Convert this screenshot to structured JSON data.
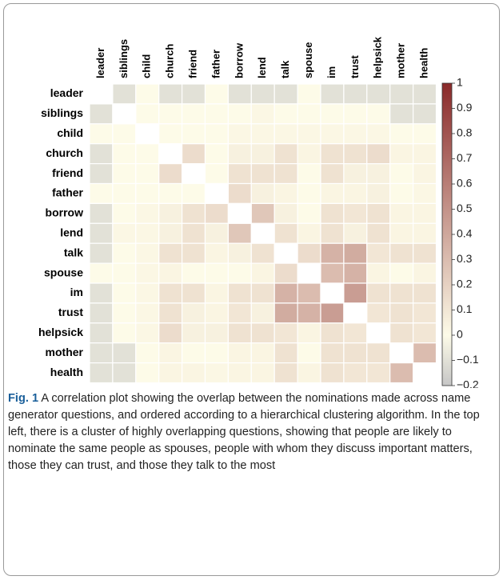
{
  "chart_data": {
    "type": "heatmap",
    "categories": [
      "leader",
      "siblings",
      "child",
      "church",
      "friend",
      "father",
      "borrow",
      "lend",
      "talk",
      "spouse",
      "im",
      "trust",
      "helpsick",
      "mother",
      "health"
    ],
    "values": [
      [
        null,
        -0.1,
        0,
        -0.1,
        -0.1,
        0,
        -0.1,
        -0.1,
        -0.1,
        0,
        -0.1,
        -0.1,
        -0.1,
        -0.1,
        -0.1
      ],
      [
        -0.1,
        null,
        0,
        0,
        0,
        0,
        0,
        0.02,
        0,
        0,
        0,
        0,
        0,
        -0.1,
        -0.1
      ],
      [
        0,
        0,
        null,
        0,
        0,
        0,
        0.02,
        0.02,
        0.02,
        0.02,
        0.02,
        0.02,
        0.02,
        0,
        0
      ],
      [
        -0.1,
        0,
        0,
        null,
        0.15,
        0,
        0.05,
        0.05,
        0.12,
        0.03,
        0.12,
        0.12,
        0.15,
        0.03,
        0.03
      ],
      [
        -0.1,
        0,
        0,
        0.15,
        null,
        0,
        0.12,
        0.12,
        0.12,
        0,
        0.12,
        0.05,
        0.05,
        0,
        0.03
      ],
      [
        0,
        0,
        0,
        0,
        0,
        null,
        0.15,
        0.05,
        0.03,
        0,
        0.03,
        0.03,
        0.05,
        0,
        0.02
      ],
      [
        -0.1,
        0,
        0.02,
        0.05,
        0.12,
        0.15,
        null,
        0.25,
        0.05,
        0,
        0.12,
        0.1,
        0.12,
        0.03,
        0.03
      ],
      [
        -0.1,
        0.02,
        0.02,
        0.05,
        0.12,
        0.05,
        0.25,
        null,
        0.12,
        0.03,
        0.12,
        0.05,
        0.12,
        0.03,
        0.03
      ],
      [
        -0.1,
        0,
        0.02,
        0.12,
        0.12,
        0.03,
        0.05,
        0.12,
        null,
        0.15,
        0.35,
        0.38,
        0.1,
        0.12,
        0.12
      ],
      [
        0,
        0,
        0.02,
        0.03,
        0,
        0,
        0,
        0.03,
        0.15,
        null,
        0.3,
        0.35,
        0.03,
        0,
        0.03
      ],
      [
        -0.1,
        0,
        0.02,
        0.12,
        0.12,
        0.03,
        0.12,
        0.12,
        0.35,
        0.3,
        null,
        0.45,
        0.12,
        0.12,
        0.12
      ],
      [
        -0.1,
        0,
        0.02,
        0.12,
        0.05,
        0.03,
        0.1,
        0.05,
        0.38,
        0.35,
        0.45,
        null,
        0.1,
        0.12,
        0.1
      ],
      [
        -0.1,
        0,
        0.02,
        0.15,
        0.05,
        0.05,
        0.12,
        0.12,
        0.1,
        0.03,
        0.12,
        0.1,
        null,
        0.12,
        0.1
      ],
      [
        -0.1,
        -0.1,
        0,
        0.03,
        0,
        0,
        0.03,
        0.03,
        0.12,
        0,
        0.12,
        0.12,
        0.12,
        null,
        0.3
      ],
      [
        -0.1,
        -0.1,
        0,
        0.03,
        0.03,
        0.02,
        0.03,
        0.03,
        0.12,
        0.03,
        0.12,
        0.1,
        0.1,
        0.3,
        null
      ]
    ],
    "zlim": [
      -0.2,
      1
    ],
    "zticks": [
      1,
      0.9,
      0.8,
      0.7,
      0.6,
      0.5,
      0.4,
      0.3,
      0.2,
      0.1,
      0,
      {
        "value": -0.1,
        "label": "−0.1"
      },
      {
        "value": -0.2,
        "label": "−0.2"
      }
    ],
    "colors": {
      "low": "#c6c6c6",
      "mid": "#fdfbe8",
      "high": "#8a2a2a"
    },
    "caption_label": "Fig. 1",
    "caption": "A correlation plot showing the overlap between the nominations made across name generator questions, and ordered according to a hierarchical clustering algorithm. In the top left, there is a cluster of highly overlapping questions, showing that people are likely to nominate the same people as spouses, people with whom they discuss important matters, those they can trust, and those they talk to the most"
  }
}
